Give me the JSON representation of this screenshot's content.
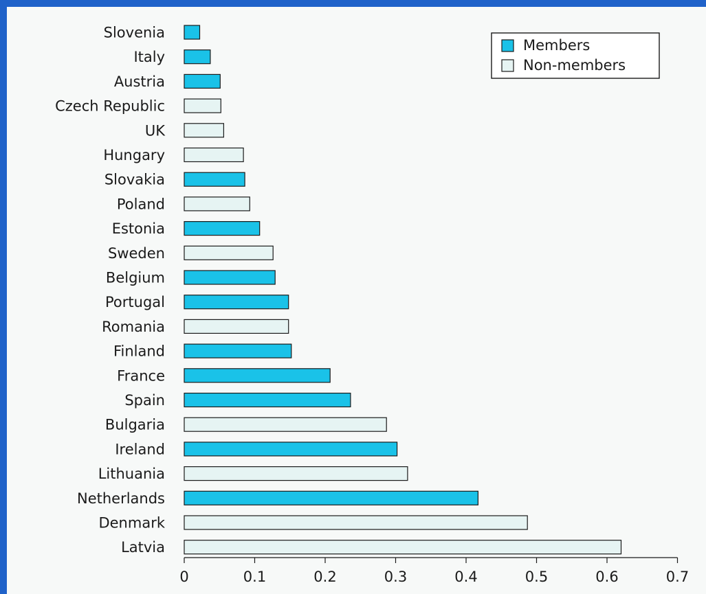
{
  "chart_data": {
    "type": "bar",
    "orientation": "horizontal",
    "categories": [
      "Slovenia",
      "Italy",
      "Austria",
      "Czech Republic",
      "UK",
      "Hungary",
      "Slovakia",
      "Poland",
      "Estonia",
      "Sweden",
      "Belgium",
      "Portugal",
      "Romania",
      "Finland",
      "France",
      "Spain",
      "Bulgaria",
      "Ireland",
      "Lithuania",
      "Netherlands",
      "Denmark",
      "Latvia"
    ],
    "values": [
      0.022,
      0.037,
      0.051,
      0.052,
      0.056,
      0.084,
      0.086,
      0.093,
      0.107,
      0.126,
      0.129,
      0.148,
      0.148,
      0.152,
      0.207,
      0.236,
      0.287,
      0.302,
      0.317,
      0.417,
      0.487,
      0.62
    ],
    "membership": [
      "member",
      "member",
      "member",
      "non-member",
      "non-member",
      "non-member",
      "member",
      "non-member",
      "member",
      "non-member",
      "member",
      "member",
      "non-member",
      "member",
      "member",
      "member",
      "non-member",
      "member",
      "non-member",
      "member",
      "non-member",
      "non-member"
    ],
    "xlim": [
      0,
      0.7
    ],
    "xticks": [
      "0",
      "0.1",
      "0.2",
      "0.3",
      "0.4",
      "0.5",
      "0.6",
      "0.7"
    ],
    "legend": {
      "placement": "top-right",
      "items": [
        {
          "label": "Members",
          "color": "#1ac2e8"
        },
        {
          "label": "Non-members",
          "color": "#e6f4f3"
        }
      ]
    },
    "colors": {
      "member": "#1ac2e8",
      "non_member": "#e6f4f3",
      "bar_stroke": "#1a1a1a"
    }
  }
}
